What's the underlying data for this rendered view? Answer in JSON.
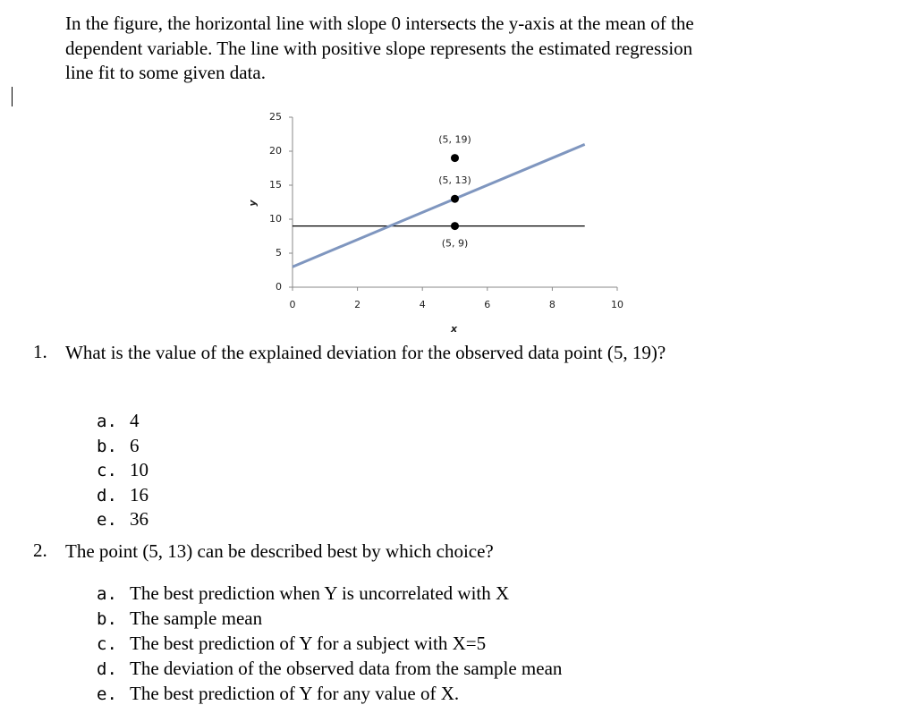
{
  "intro": "In the figure, the horizontal line with slope 0 intersects the y-axis at the mean of the dependent variable. The line with positive slope represents the estimated regression line fit to some given data.",
  "chart": {
    "type": "scatter",
    "x_label": "x",
    "y_label": "y",
    "xlim": [
      0,
      10
    ],
    "ylim": [
      0,
      25
    ],
    "xticks": [
      0,
      2,
      4,
      6,
      8,
      10
    ],
    "yticks": [
      0,
      5,
      10,
      15,
      20,
      25
    ],
    "points": {
      "x": [
        5,
        5,
        5
      ],
      "y": [
        19,
        13,
        9
      ],
      "labels": [
        "(5, 19)",
        "(5, 13)",
        "(5, 9)"
      ],
      "color": "#000000"
    },
    "lines": [
      {
        "x": [
          0,
          9
        ],
        "y": [
          9,
          9
        ],
        "color": "#000000"
      },
      {
        "x": [
          0,
          9
        ],
        "y": [
          3,
          21
        ],
        "color": "#7f96bf"
      }
    ]
  },
  "questions": [
    {
      "number": "1.",
      "text": "What is the value of the explained deviation for the observed data point (5, 19)?",
      "options": [
        {
          "letter": "a.",
          "text": "4"
        },
        {
          "letter": "b.",
          "text": "6"
        },
        {
          "letter": "c.",
          "text": "10"
        },
        {
          "letter": "d.",
          "text": "16"
        },
        {
          "letter": "e.",
          "text": "36"
        }
      ]
    },
    {
      "number": "2.",
      "text": "The point (5, 13) can be described best by which choice?",
      "options": [
        {
          "letter": "a.",
          "text": "The best prediction when Y is uncorrelated with X"
        },
        {
          "letter": "b.",
          "text": "The sample mean"
        },
        {
          "letter": "c.",
          "text": "The best prediction of Y for a subject with X=5"
        },
        {
          "letter": "d.",
          "text": "The deviation of the observed data from the sample mean"
        },
        {
          "letter": "e.",
          "text": "The best prediction of Y for any value of X."
        }
      ]
    }
  ]
}
